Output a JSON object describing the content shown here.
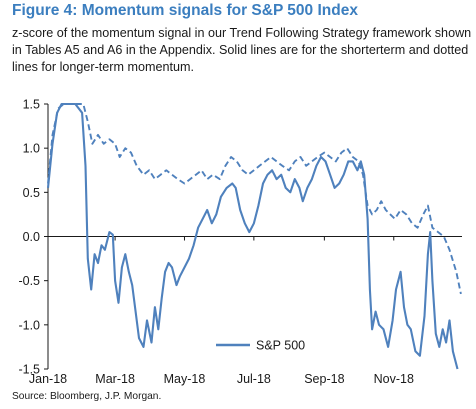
{
  "figure": {
    "title": "Figure 4: Momentum signals for S&P 500 Index",
    "caption": "z-score of the momentum signal in our Trend Following Strategy framework shown in Tables A5 and A6 in the Appendix. Solid lines are for the shorterterm and dotted lines for longer-term momentum.",
    "source": "Source: Bloomberg, J.P. Morgan."
  },
  "colors": {
    "title": "#3b7ebf",
    "series": "#4f81bd",
    "axis": "#1a1a1a"
  },
  "chart_data": {
    "type": "line",
    "title": "Figure 4: Momentum signals for S&P 500 Index",
    "xlabel": "",
    "ylabel": "",
    "x_type": "date",
    "xlim": [
      "2018-01-01",
      "2018-12-31"
    ],
    "ylim": [
      -1.5,
      1.5
    ],
    "y_ticks": [
      "1.5",
      "1.0",
      "0.5",
      "0.0",
      "-0.5",
      "-1.0",
      "-1.5"
    ],
    "x_ticks": [
      {
        "label": "Jan-18",
        "date": "2018-01-01"
      },
      {
        "label": "Mar-18",
        "date": "2018-03-01"
      },
      {
        "label": "May-18",
        "date": "2018-05-01"
      },
      {
        "label": "Jul-18",
        "date": "2018-07-01"
      },
      {
        "label": "Sep-18",
        "date": "2018-09-01"
      },
      {
        "label": "Nov-18",
        "date": "2018-11-01"
      }
    ],
    "grid": false,
    "legend": {
      "position": "bottom-center",
      "entries": [
        "S&P 500"
      ]
    },
    "series": [
      {
        "name": "S&P 500",
        "style": "solid",
        "points": [
          [
            "2018-01-01",
            0.55
          ],
          [
            "2018-01-05",
            1.05
          ],
          [
            "2018-01-09",
            1.4
          ],
          [
            "2018-01-13",
            1.5
          ],
          [
            "2018-01-20",
            1.5
          ],
          [
            "2018-01-25",
            1.5
          ],
          [
            "2018-01-31",
            1.4
          ],
          [
            "2018-02-03",
            0.8
          ],
          [
            "2018-02-05",
            -0.25
          ],
          [
            "2018-02-08",
            -0.6
          ],
          [
            "2018-02-11",
            -0.2
          ],
          [
            "2018-02-14",
            -0.3
          ],
          [
            "2018-02-17",
            -0.1
          ],
          [
            "2018-02-20",
            -0.15
          ],
          [
            "2018-02-24",
            0.05
          ],
          [
            "2018-02-27",
            0.02
          ],
          [
            "2018-03-01",
            -0.5
          ],
          [
            "2018-03-04",
            -0.75
          ],
          [
            "2018-03-07",
            -0.35
          ],
          [
            "2018-03-10",
            -0.2
          ],
          [
            "2018-03-13",
            -0.4
          ],
          [
            "2018-03-16",
            -0.55
          ],
          [
            "2018-03-19",
            -0.85
          ],
          [
            "2018-03-22",
            -1.15
          ],
          [
            "2018-03-26",
            -1.25
          ],
          [
            "2018-03-29",
            -0.95
          ],
          [
            "2018-04-02",
            -1.2
          ],
          [
            "2018-04-05",
            -0.8
          ],
          [
            "2018-04-08",
            -1.05
          ],
          [
            "2018-04-11",
            -0.7
          ],
          [
            "2018-04-14",
            -0.4
          ],
          [
            "2018-04-17",
            -0.3
          ],
          [
            "2018-04-20",
            -0.35
          ],
          [
            "2018-04-24",
            -0.55
          ],
          [
            "2018-04-27",
            -0.45
          ],
          [
            "2018-05-01",
            -0.35
          ],
          [
            "2018-05-05",
            -0.25
          ],
          [
            "2018-05-09",
            -0.1
          ],
          [
            "2018-05-13",
            0.1
          ],
          [
            "2018-05-17",
            0.2
          ],
          [
            "2018-05-21",
            0.3
          ],
          [
            "2018-05-25",
            0.15
          ],
          [
            "2018-05-29",
            0.25
          ],
          [
            "2018-06-02",
            0.45
          ],
          [
            "2018-06-07",
            0.55
          ],
          [
            "2018-06-12",
            0.6
          ],
          [
            "2018-06-15",
            0.55
          ],
          [
            "2018-06-19",
            0.3
          ],
          [
            "2018-06-23",
            0.15
          ],
          [
            "2018-06-27",
            0.05
          ],
          [
            "2018-07-01",
            0.15
          ],
          [
            "2018-07-05",
            0.35
          ],
          [
            "2018-07-09",
            0.6
          ],
          [
            "2018-07-13",
            0.7
          ],
          [
            "2018-07-17",
            0.75
          ],
          [
            "2018-07-21",
            0.65
          ],
          [
            "2018-07-25",
            0.7
          ],
          [
            "2018-07-29",
            0.55
          ],
          [
            "2018-08-02",
            0.5
          ],
          [
            "2018-08-06",
            0.65
          ],
          [
            "2018-08-10",
            0.55
          ],
          [
            "2018-08-13",
            0.4
          ],
          [
            "2018-08-17",
            0.55
          ],
          [
            "2018-08-21",
            0.65
          ],
          [
            "2018-08-25",
            0.8
          ],
          [
            "2018-08-29",
            0.9
          ],
          [
            "2018-09-02",
            0.85
          ],
          [
            "2018-09-06",
            0.7
          ],
          [
            "2018-09-10",
            0.55
          ],
          [
            "2018-09-14",
            0.6
          ],
          [
            "2018-09-18",
            0.7
          ],
          [
            "2018-09-22",
            0.85
          ],
          [
            "2018-09-26",
            0.85
          ],
          [
            "2018-09-30",
            0.75
          ],
          [
            "2018-10-03",
            0.85
          ],
          [
            "2018-10-06",
            0.7
          ],
          [
            "2018-10-09",
            0.2
          ],
          [
            "2018-10-11",
            -0.6
          ],
          [
            "2018-10-13",
            -1.05
          ],
          [
            "2018-10-16",
            -0.85
          ],
          [
            "2018-10-19",
            -1.0
          ],
          [
            "2018-10-23",
            -1.05
          ],
          [
            "2018-10-27",
            -1.25
          ],
          [
            "2018-10-31",
            -0.95
          ],
          [
            "2018-11-03",
            -0.6
          ],
          [
            "2018-11-07",
            -0.4
          ],
          [
            "2018-11-10",
            -0.8
          ],
          [
            "2018-11-13",
            -1.0
          ],
          [
            "2018-11-16",
            -1.05
          ],
          [
            "2018-11-20",
            -1.3
          ],
          [
            "2018-11-24",
            -1.35
          ],
          [
            "2018-11-28",
            -0.9
          ],
          [
            "2018-12-01",
            -0.2
          ],
          [
            "2018-12-03",
            0.05
          ],
          [
            "2018-12-05",
            -0.5
          ],
          [
            "2018-12-08",
            -1.1
          ],
          [
            "2018-12-11",
            -1.25
          ],
          [
            "2018-12-14",
            -1.05
          ],
          [
            "2018-12-17",
            -1.2
          ],
          [
            "2018-12-20",
            -0.95
          ],
          [
            "2018-12-23",
            -1.3
          ],
          [
            "2018-12-27",
            -1.5
          ]
        ]
      },
      {
        "name": "",
        "style": "dotted",
        "points": [
          [
            "2018-01-01",
            0.6
          ],
          [
            "2018-01-05",
            1.15
          ],
          [
            "2018-01-10",
            1.45
          ],
          [
            "2018-01-15",
            1.5
          ],
          [
            "2018-01-20",
            1.5
          ],
          [
            "2018-01-26",
            1.5
          ],
          [
            "2018-02-01",
            1.5
          ],
          [
            "2018-02-05",
            1.3
          ],
          [
            "2018-02-09",
            1.05
          ],
          [
            "2018-02-14",
            1.15
          ],
          [
            "2018-02-19",
            1.05
          ],
          [
            "2018-02-24",
            1.1
          ],
          [
            "2018-03-01",
            1.05
          ],
          [
            "2018-03-05",
            0.9
          ],
          [
            "2018-03-10",
            1.0
          ],
          [
            "2018-03-15",
            0.95
          ],
          [
            "2018-03-20",
            0.8
          ],
          [
            "2018-03-26",
            0.7
          ],
          [
            "2018-03-31",
            0.75
          ],
          [
            "2018-04-05",
            0.65
          ],
          [
            "2018-04-10",
            0.7
          ],
          [
            "2018-04-15",
            0.75
          ],
          [
            "2018-04-20",
            0.7
          ],
          [
            "2018-04-25",
            0.65
          ],
          [
            "2018-05-01",
            0.6
          ],
          [
            "2018-05-06",
            0.65
          ],
          [
            "2018-05-11",
            0.7
          ],
          [
            "2018-05-16",
            0.75
          ],
          [
            "2018-05-21",
            0.65
          ],
          [
            "2018-05-26",
            0.7
          ],
          [
            "2018-06-01",
            0.65
          ],
          [
            "2018-06-06",
            0.8
          ],
          [
            "2018-06-11",
            0.9
          ],
          [
            "2018-06-16",
            0.85
          ],
          [
            "2018-06-21",
            0.75
          ],
          [
            "2018-06-26",
            0.7
          ],
          [
            "2018-07-01",
            0.75
          ],
          [
            "2018-07-06",
            0.8
          ],
          [
            "2018-07-11",
            0.85
          ],
          [
            "2018-07-16",
            0.9
          ],
          [
            "2018-07-21",
            0.85
          ],
          [
            "2018-07-26",
            0.8
          ],
          [
            "2018-08-01",
            0.75
          ],
          [
            "2018-08-06",
            0.85
          ],
          [
            "2018-08-11",
            0.9
          ],
          [
            "2018-08-16",
            0.8
          ],
          [
            "2018-08-21",
            0.85
          ],
          [
            "2018-08-26",
            0.9
          ],
          [
            "2018-09-01",
            0.95
          ],
          [
            "2018-09-06",
            0.9
          ],
          [
            "2018-09-11",
            0.85
          ],
          [
            "2018-09-16",
            0.95
          ],
          [
            "2018-09-21",
            1.0
          ],
          [
            "2018-09-26",
            0.9
          ],
          [
            "2018-10-01",
            0.85
          ],
          [
            "2018-10-05",
            0.7
          ],
          [
            "2018-10-09",
            0.35
          ],
          [
            "2018-10-13",
            0.25
          ],
          [
            "2018-10-17",
            0.3
          ],
          [
            "2018-10-21",
            0.4
          ],
          [
            "2018-10-25",
            0.3
          ],
          [
            "2018-10-29",
            0.25
          ],
          [
            "2018-11-02",
            0.2
          ],
          [
            "2018-11-07",
            0.3
          ],
          [
            "2018-11-12",
            0.25
          ],
          [
            "2018-11-17",
            0.15
          ],
          [
            "2018-11-22",
            0.1
          ],
          [
            "2018-11-27",
            0.25
          ],
          [
            "2018-12-01",
            0.35
          ],
          [
            "2018-12-05",
            0.1
          ],
          [
            "2018-12-10",
            0.05
          ],
          [
            "2018-12-15",
            0.0
          ],
          [
            "2018-12-20",
            -0.15
          ],
          [
            "2018-12-26",
            -0.4
          ],
          [
            "2018-12-30",
            -0.65
          ]
        ]
      }
    ]
  }
}
